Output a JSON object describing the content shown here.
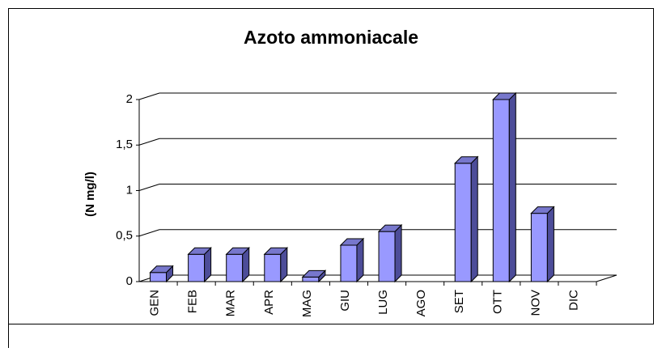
{
  "chart_data": {
    "type": "bar",
    "title": "Azoto ammoniacale",
    "y_label": "(N mg/l)",
    "categories": [
      "GEN",
      "FEB",
      "MAR",
      "APR",
      "MAG",
      "GIU",
      "LUG",
      "AGO",
      "SET",
      "OTT",
      "NOV",
      "DIC"
    ],
    "values": [
      0.1,
      0.3,
      0.3,
      0.3,
      0.05,
      0.4,
      0.55,
      null,
      1.3,
      2.0,
      0.75,
      null
    ],
    "color": "#9999ff",
    "ylim": [
      0,
      2
    ],
    "yticks": [
      0,
      {
        "value": 0.5,
        "label": "0,5"
      },
      1,
      {
        "value": 1.5,
        "label": "1,5"
      },
      2
    ],
    "grid": true
  }
}
